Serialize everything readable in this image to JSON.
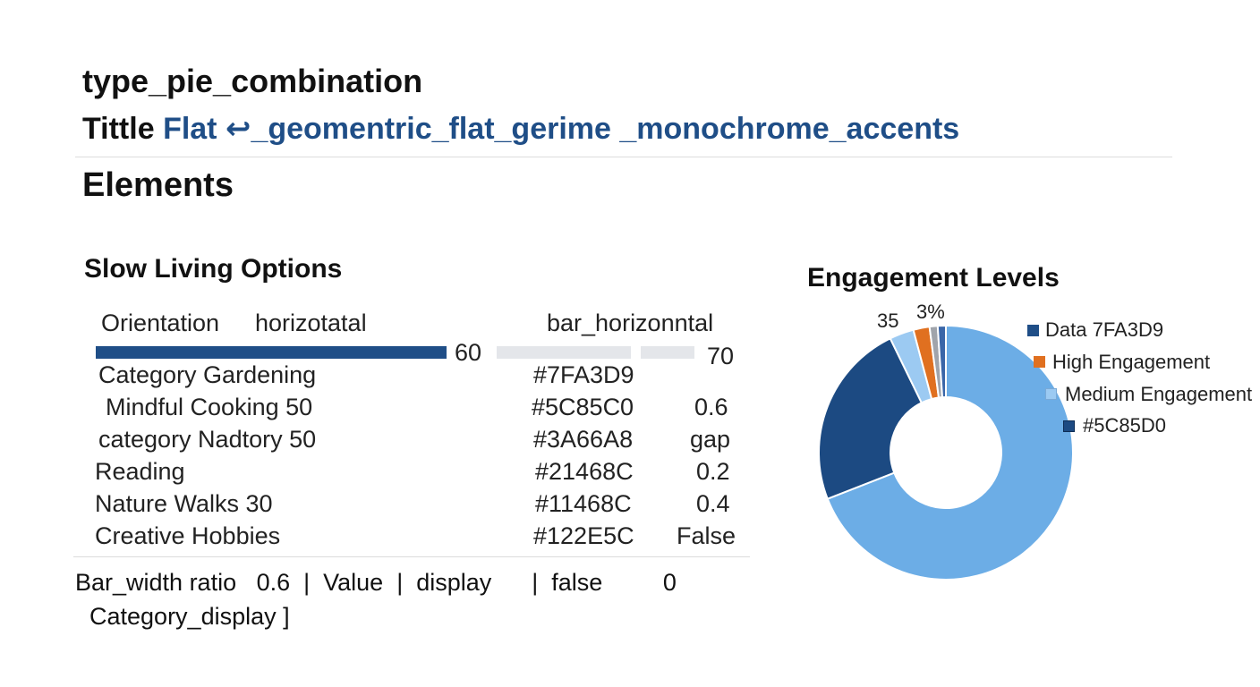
{
  "heading": {
    "type_label": "type_pie_combination",
    "title_prefix": "Tittle",
    "title_value": "Flat ↩_geomentric_flat_gerime _monochrome_accents",
    "elements_label": "Elements"
  },
  "colors": {
    "navy": "#1f4e87",
    "light_bar": "#e4e6ea",
    "pie_light_blue": "#6cade6",
    "pie_navy": "#1c4a82",
    "pie_pale_blue": "#9ccaf2",
    "pie_orange": "#e07020",
    "pie_gray": "#a0a4ab",
    "pie_blue": "#3a66a8"
  },
  "chart_data": [
    {
      "type": "bar",
      "title": "Slow Living Options",
      "orientation_label": "Orientation",
      "orientation_value": "horizotatal",
      "type_label": "bar_horizonntal",
      "bars": [
        {
          "value": 60,
          "label": "60",
          "color": "#1f4e87"
        },
        {
          "value": null,
          "label": "",
          "color": "#e4e6ea"
        },
        {
          "value": 70,
          "label": "70",
          "color": "#e4e6ea"
        }
      ],
      "rows": [
        {
          "label": "Category Gardening",
          "color": "#7FA3D9",
          "extra": ""
        },
        {
          "label": "Mindful Cooking 50",
          "color": "#5C85C0",
          "extra": "0.6"
        },
        {
          "label": "category Nadtory 50",
          "color": "#3A66A8",
          "extra": "gap"
        },
        {
          "label": "Reading",
          "color": "#21468C",
          "extra": "0.2"
        },
        {
          "label": "Nature Walks  30",
          "color": "#11468C",
          "extra": "0.4"
        },
        {
          "label": "Creative Hobbies",
          "color": "#122E5C",
          "extra": "False"
        }
      ],
      "footer_line1": "Bar_width ratio   0.6  |  Value  |  display      |  false         0",
      "footer_line2": "Category_display  ]"
    },
    {
      "type": "pie",
      "title": "Engagement Levels",
      "donut": true,
      "slices": [
        {
          "name": "light-blue",
          "value": 67,
          "color": "#6cade6"
        },
        {
          "name": "navy",
          "value": 23,
          "color": "#1c4a82"
        },
        {
          "name": "pale-blue",
          "value": 3,
          "color": "#9ccaf2"
        },
        {
          "name": "orange",
          "value": 2,
          "color": "#e07020"
        },
        {
          "name": "gray",
          "value": 1,
          "color": "#a0a4ab"
        },
        {
          "name": "blue",
          "value": 1,
          "color": "#3a66a8"
        }
      ],
      "slice_labels": [
        "35",
        "3%"
      ],
      "legend": [
        {
          "label": "Data 7FA3D9",
          "color": "#1f4e87"
        },
        {
          "label": "High Engagement",
          "color": "#e07020"
        },
        {
          "label": "Medium Engagement",
          "color": "#9ccaf2"
        },
        {
          "label": "#5C85D0",
          "color": "#1c4a82"
        }
      ]
    }
  ]
}
